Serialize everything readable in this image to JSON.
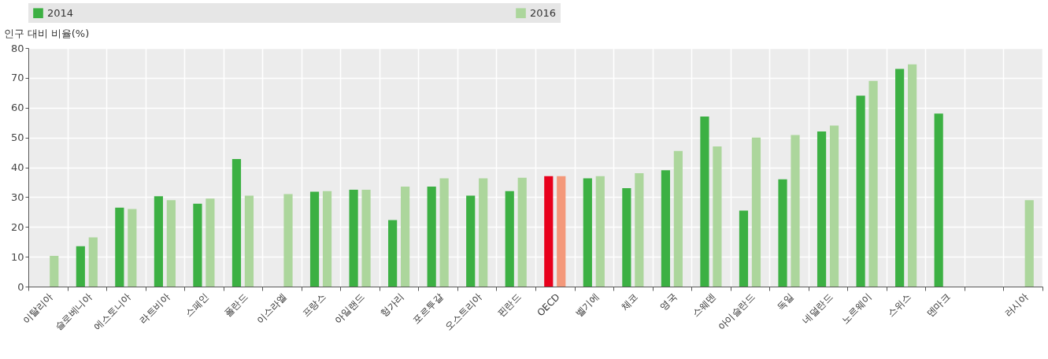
{
  "chart_data": {
    "type": "bar",
    "ylabel": "인구 대비 비율(%)",
    "categories": [
      "이탈리아",
      "슬로베니아",
      "에스토니아",
      "라트비아",
      "스페인",
      "폴란드",
      "이스라엘",
      "프랑스",
      "아일랜드",
      "헝가리",
      "포르투갈",
      "오스트리아",
      "핀란드",
      "OECD",
      "벨기에",
      "체코",
      "영국",
      "스웨덴",
      "아이슬란드",
      "독일",
      "네덜란드",
      "노르웨이",
      "스위스",
      "덴마크",
      null,
      "러시아"
    ],
    "series": [
      {
        "name": "2014",
        "color": "#3cb043",
        "colors": [
          null,
          "#3cb043",
          "#3cb043",
          "#3cb043",
          "#3cb043",
          "#3cb043",
          null,
          "#3cb043",
          "#3cb043",
          "#3cb043",
          "#3cb043",
          "#3cb043",
          "#3cb043",
          "#e8001c",
          "#3cb043",
          "#3cb043",
          "#3cb043",
          "#3cb043",
          "#3cb043",
          "#3cb043",
          "#3cb043",
          "#3cb043",
          "#3cb043",
          "#3cb043",
          null,
          null
        ],
        "values": [
          null,
          13.5,
          26.5,
          30.3,
          27.8,
          42.8,
          null,
          31.8,
          32.5,
          22.3,
          33.5,
          30.5,
          32,
          37,
          36.3,
          33,
          39,
          57,
          25.5,
          36,
          52,
          64,
          73,
          58,
          null,
          null
        ]
      },
      {
        "name": "2016",
        "color": "#acd69c",
        "colors": [
          "#acd69c",
          "#acd69c",
          "#acd69c",
          "#acd69c",
          "#acd69c",
          "#acd69c",
          "#acd69c",
          "#acd69c",
          "#acd69c",
          "#acd69c",
          "#acd69c",
          "#acd69c",
          "#acd69c",
          "#f4987a",
          "#acd69c",
          "#acd69c",
          "#acd69c",
          "#acd69c",
          "#acd69c",
          "#acd69c",
          "#acd69c",
          "#acd69c",
          "#acd69c",
          null,
          null,
          "#acd69c"
        ],
        "values": [
          10.3,
          16.5,
          26,
          29,
          29.5,
          30.5,
          31,
          32,
          32.5,
          33.5,
          36.3,
          36.3,
          36.5,
          37,
          37,
          38,
          45.5,
          47,
          50,
          50.8,
          54,
          69,
          74.5,
          null,
          null,
          29
        ]
      }
    ],
    "ylim": [
      0,
      80
    ],
    "yticks": [
      0,
      10,
      20,
      30,
      40,
      50,
      60,
      70,
      80
    ],
    "grid": true,
    "legend": "top"
  }
}
